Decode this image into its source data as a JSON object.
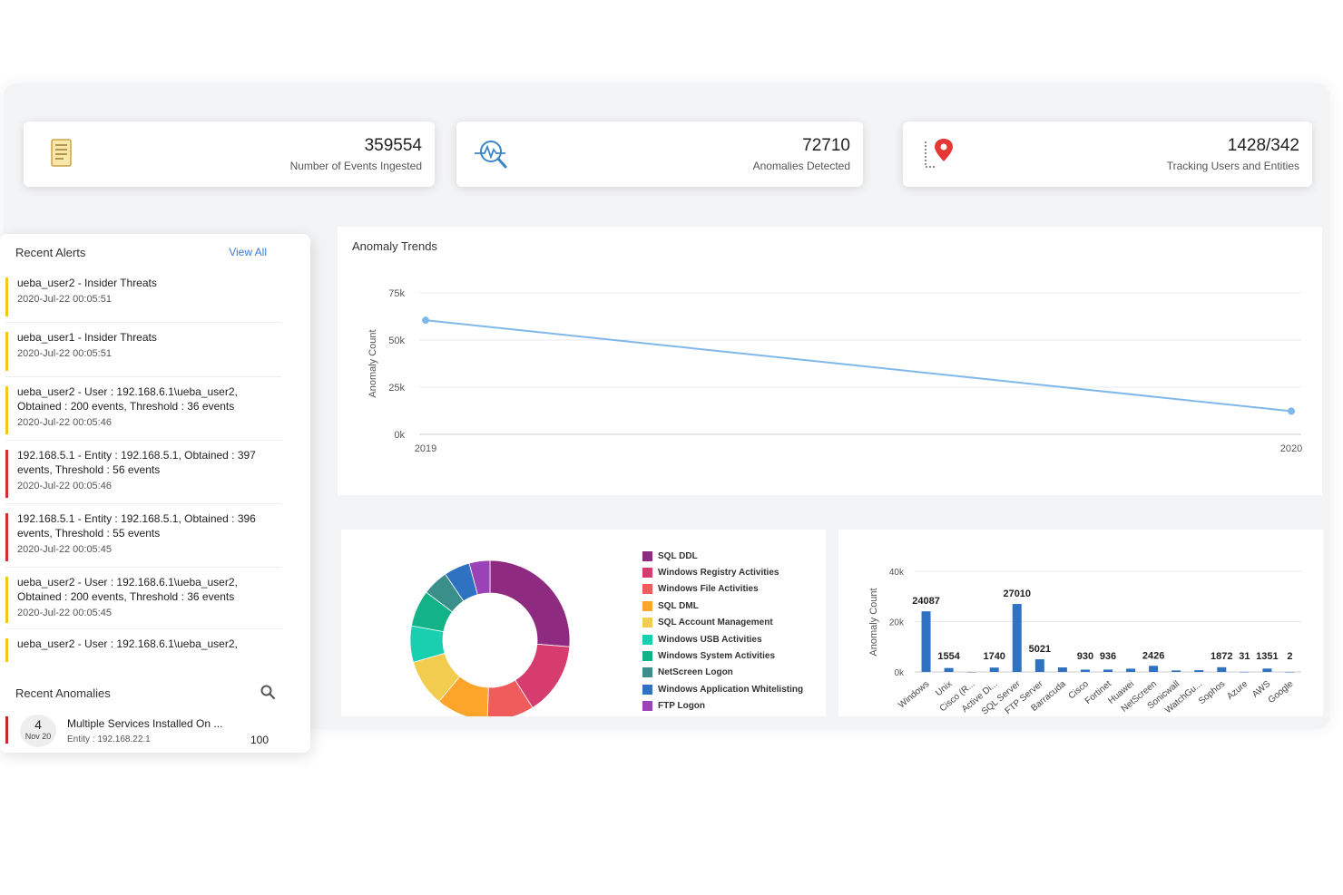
{
  "stats": [
    {
      "value": "359554",
      "label": "Number of Events Ingested",
      "icon": "document-icon"
    },
    {
      "value": "72710",
      "label": "Anomalies Detected",
      "icon": "magnifier-chart-icon"
    },
    {
      "value": "1428/342",
      "label": "Tracking Users and Entities",
      "icon": "location-pin-icon"
    }
  ],
  "alerts": {
    "title": "Recent Alerts",
    "view_all": "View All",
    "items": [
      {
        "text": "ueba_user2 - Insider Threats",
        "date": "2020-Jul-22 00:05:51",
        "color": "#f5c518"
      },
      {
        "text": "ueba_user1 - Insider Threats",
        "date": "2020-Jul-22 00:05:51",
        "color": "#f5c518"
      },
      {
        "text": "ueba_user2 - User : 192.168.6.1\\ueba_user2, Obtained : 200 events, Threshold : 36 events",
        "date": "2020-Jul-22 00:05:46",
        "color": "#f5c518"
      },
      {
        "text": "192.168.5.1 - Entity : 192.168.5.1, Obtained : 397 events, Threshold : 56 events",
        "date": "2020-Jul-22 00:05:46",
        "color": "#d32f2f"
      },
      {
        "text": "192.168.5.1 - Entity : 192.168.5.1, Obtained : 396 events, Threshold : 55 events",
        "date": "2020-Jul-22 00:05:45",
        "color": "#d32f2f"
      },
      {
        "text": "ueba_user2 - User : 192.168.6.1\\ueba_user2, Obtained : 200 events, Threshold : 36 events",
        "date": "2020-Jul-22 00:05:45",
        "color": "#f5c518"
      },
      {
        "text": "ueba_user2 - User : 192.168.6.1\\ueba_user2,",
        "date": "",
        "color": "#f5c518"
      }
    ]
  },
  "anomalies": {
    "title": "Recent Anomalies",
    "item": {
      "day": "4",
      "month": "Nov 20",
      "title": "Multiple Services Installed On ...",
      "entity": "Entity : 192.168.22.1",
      "score": "100"
    }
  },
  "chart_data": [
    {
      "type": "line",
      "title": "Anomaly Trends",
      "ylabel": "Anomaly Count",
      "xlabel": "",
      "x": [
        "2019",
        "2020"
      ],
      "series": [
        {
          "values": [
            60500,
            12300
          ],
          "color": "#7fb8ea"
        }
      ],
      "ylim": [
        0,
        75000
      ],
      "yticks": [
        {
          "v": 0,
          "label": "0k"
        },
        {
          "v": 25000,
          "label": "25k"
        },
        {
          "v": 50000,
          "label": "50k"
        },
        {
          "v": 75000,
          "label": "75k"
        }
      ],
      "grid": true
    },
    {
      "type": "pie",
      "donut": true,
      "legend_position": "right",
      "categories": [
        "SQL DDL",
        "Windows Registry Activities",
        "Windows File Activities",
        "SQL DML",
        "SQL Account Management",
        "Windows USB Activities",
        "Windows System Activities",
        "NetScreen Logon",
        "Windows Application Whitelisting",
        "FTP Logon"
      ],
      "values": [
        25,
        14,
        9,
        10,
        9,
        7,
        7,
        5,
        5,
        4
      ],
      "colors": [
        "#8e2a7f",
        "#d63c6d",
        "#f05c5c",
        "#fca52a",
        "#f2cc4e",
        "#18cfb0",
        "#12b388",
        "#3a8f8a",
        "#2f72c2",
        "#9b42b8"
      ]
    },
    {
      "type": "bar",
      "ylabel": "Anomaly Count",
      "categories": [
        "Windows",
        "Unix",
        "Cisco (R...",
        "Active Di...",
        "SQL Server",
        "FTP Server",
        "Barracuda",
        "Cisco",
        "Fortinet",
        "Huawei",
        "NetScreen",
        "Sonicwall",
        "WatchGu...",
        "Sophos",
        "Azure",
        "AWS",
        "Google"
      ],
      "values": [
        24087,
        1554,
        0,
        1740,
        27010,
        5021,
        1800,
        930,
        936,
        1300,
        2426,
        600,
        700,
        1872,
        31,
        1351,
        2
      ],
      "labels": [
        {
          "i": 0,
          "text": "24087"
        },
        {
          "i": 1,
          "text": "1554"
        },
        {
          "i": 3,
          "text": "1740"
        },
        {
          "i": 4,
          "text": "27010"
        },
        {
          "i": 5,
          "text": "5021"
        },
        {
          "i": 7,
          "text": "930"
        },
        {
          "i": 8,
          "text": "936"
        },
        {
          "i": 10,
          "text": "2426"
        },
        {
          "i": 13,
          "text": "1872"
        },
        {
          "i": 14,
          "text": "31"
        },
        {
          "i": 15,
          "text": "1351"
        },
        {
          "i": 16,
          "text": "2"
        }
      ],
      "ylim": [
        0,
        40000
      ],
      "yticks": [
        {
          "v": 0,
          "label": "0k"
        },
        {
          "v": 20000,
          "label": "20k"
        },
        {
          "v": 40000,
          "label": "40k"
        }
      ],
      "color": "#2f72c2",
      "grid": true
    }
  ]
}
